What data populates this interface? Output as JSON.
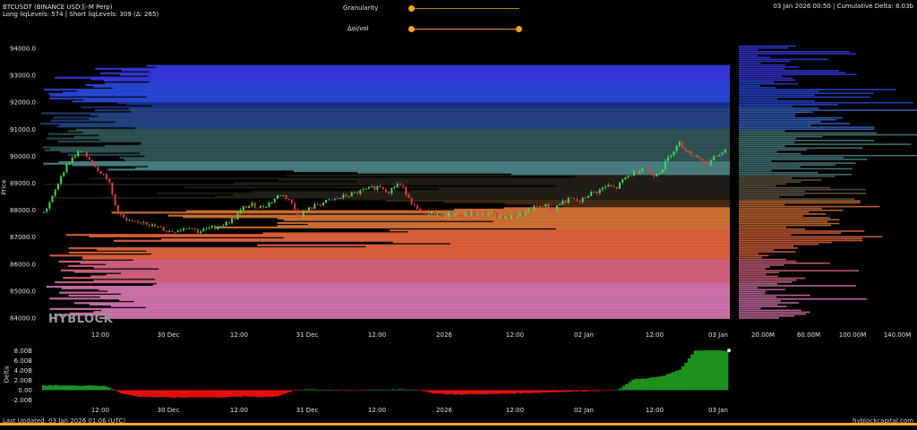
{
  "header": {
    "symbol": "BTCUSDT (BINANCE USDⓈ-M Perp)",
    "liq_levels": "Long liqLevels: 574 | Short liqLevels: 309 (Δ: 265)",
    "right_info": "03 Jan 2026 00:50 | Cumulative Delta: 8.03b"
  },
  "controls": {
    "granularity_label": "Granularity",
    "granularity_value": 0.0,
    "oivol_label": "Δoi/vol",
    "oivol_value": [
      0.0,
      1.0
    ]
  },
  "colors": {
    "background": "#000000",
    "accent": "#f5a623",
    "positive": "#1f8f1f",
    "negative": "#e01010",
    "candle_up": "#3ddc54",
    "candle_down": "#e23c3c"
  },
  "watermark": "HYBLOCK",
  "footer": {
    "last_updated": "Last Updated: 03 Jan 2026 01:06 (UTC)",
    "brand": "hyblockcapital.com"
  },
  "chart_data": [
    {
      "type": "candlestick+liquidation-heatmap",
      "ylabel": "Price",
      "y_ticks": [
        "84000.0",
        "85000.0",
        "86000.0",
        "87000.0",
        "88000.0",
        "89000.0",
        "90000.0",
        "91000.0",
        "92000.0",
        "93000.0",
        "94000.0"
      ],
      "ylim": [
        83500,
        94300
      ],
      "x_ticks": [
        "12:00",
        "30 Dec",
        "12:00",
        "31 Dec",
        "12:00",
        "2026",
        "12:00",
        "02 Jan",
        "12:00",
        "03 Jan"
      ],
      "side_axis_ticks": [
        "20.00M",
        "60.00M",
        "100.00M",
        "140.00M"
      ],
      "price_path": [
        87900,
        88500,
        89400,
        89900,
        90200,
        89900,
        89500,
        89200,
        88000,
        87600,
        87500,
        87600,
        87400,
        87300,
        87200,
        87300,
        87400,
        87200,
        87300,
        87400,
        87500,
        87700,
        88100,
        88200,
        88100,
        88300,
        88600,
        88400,
        87800,
        88000,
        88200,
        88300,
        88400,
        88500,
        88600,
        88700,
        88800,
        88900,
        88700,
        89000,
        88600,
        88000,
        87800,
        87900,
        87800,
        87900,
        87800,
        87900,
        87800,
        87900,
        87800,
        87700,
        87800,
        87900,
        88100,
        88200,
        88000,
        88300,
        88400,
        88300,
        88600,
        88700,
        88900,
        88800,
        89200,
        89400,
        89600,
        89300,
        89500,
        90100,
        90500,
        90100,
        90000,
        89700,
        90000,
        90200
      ]
    },
    {
      "type": "bar",
      "ylabel": "Delta",
      "y_ticks": [
        "-2.00B",
        "0.00",
        "2.00B",
        "4.00B",
        "6.00B",
        "8.00B"
      ],
      "ylim": [
        -3,
        9
      ],
      "x_ticks": [
        "12:00",
        "30 Dec",
        "12:00",
        "31 Dec",
        "12:00",
        "2026",
        "12:00",
        "02 Jan",
        "12:00",
        "03 Jan"
      ],
      "delta_path": [
        0.9,
        1.0,
        0.9,
        1.0,
        0.8,
        -0.6,
        -1.3,
        -1.4,
        -1.5,
        -1.5,
        -1.4,
        -1.5,
        -1.4,
        -1.3,
        -1.4,
        -1.3,
        -0.2,
        0.2,
        0.1,
        0.0,
        -0.1,
        0.0,
        0.1,
        0.2,
        0.1,
        -0.6,
        -0.8,
        -0.9,
        -0.8,
        -0.8,
        -0.7,
        -0.6,
        -0.5,
        -0.4,
        -0.3,
        -0.2,
        -0.1,
        0.0,
        2.2,
        2.4,
        3.0,
        4.1,
        8.0,
        8.1,
        8.0
      ]
    }
  ]
}
